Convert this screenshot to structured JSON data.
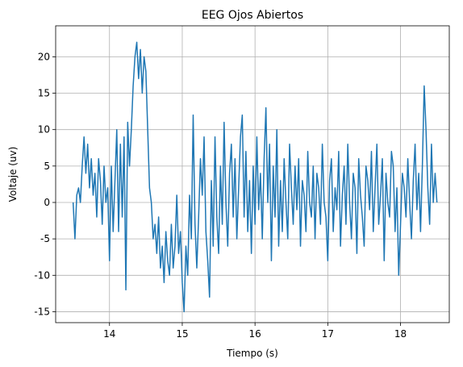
{
  "chart_data": {
    "type": "line",
    "title": "EEG Ojos Abiertos",
    "xlabel": "Tiempo (s)",
    "ylabel": "Voltaje (uv)",
    "x": [
      13.5,
      13.525,
      13.55,
      13.575,
      13.6,
      13.625,
      13.65,
      13.675,
      13.7,
      13.725,
      13.75,
      13.775,
      13.8,
      13.825,
      13.85,
      13.875,
      13.9,
      13.925,
      13.95,
      13.975,
      14.0,
      14.025,
      14.05,
      14.075,
      14.1,
      14.125,
      14.15,
      14.175,
      14.2,
      14.225,
      14.25,
      14.275,
      14.3,
      14.325,
      14.35,
      14.375,
      14.4,
      14.425,
      14.45,
      14.475,
      14.5,
      14.525,
      14.55,
      14.575,
      14.6,
      14.625,
      14.65,
      14.675,
      14.7,
      14.725,
      14.75,
      14.775,
      14.8,
      14.825,
      14.85,
      14.875,
      14.9,
      14.925,
      14.95,
      14.975,
      15.0,
      15.025,
      15.05,
      15.075,
      15.1,
      15.125,
      15.15,
      15.175,
      15.2,
      15.225,
      15.25,
      15.275,
      15.3,
      15.325,
      15.35,
      15.375,
      15.4,
      15.425,
      15.45,
      15.475,
      15.5,
      15.525,
      15.55,
      15.575,
      15.6,
      15.625,
      15.65,
      15.675,
      15.7,
      15.725,
      15.75,
      15.775,
      15.8,
      15.825,
      15.85,
      15.875,
      15.9,
      15.925,
      15.95,
      15.975,
      16.0,
      16.025,
      16.05,
      16.075,
      16.1,
      16.125,
      16.15,
      16.175,
      16.2,
      16.225,
      16.25,
      16.275,
      16.3,
      16.325,
      16.35,
      16.375,
      16.4,
      16.425,
      16.45,
      16.475,
      16.5,
      16.525,
      16.55,
      16.575,
      16.6,
      16.625,
      16.65,
      16.675,
      16.7,
      16.725,
      16.75,
      16.775,
      16.8,
      16.825,
      16.85,
      16.875,
      16.9,
      16.925,
      16.95,
      16.975,
      17.0,
      17.025,
      17.05,
      17.075,
      17.1,
      17.125,
      17.15,
      17.175,
      17.2,
      17.225,
      17.25,
      17.275,
      17.3,
      17.325,
      17.35,
      17.375,
      17.4,
      17.425,
      17.45,
      17.475,
      17.5,
      17.525,
      17.55,
      17.575,
      17.6,
      17.625,
      17.65,
      17.675,
      17.7,
      17.725,
      17.75,
      17.775,
      17.8,
      17.825,
      17.85,
      17.875,
      17.9,
      17.925,
      17.95,
      17.975,
      18.0,
      18.025,
      18.05,
      18.075,
      18.1,
      18.125,
      18.15,
      18.175,
      18.2,
      18.225,
      18.25,
      18.275,
      18.3,
      18.325,
      18.35,
      18.375,
      18.4,
      18.425,
      18.45,
      18.475,
      18.5
    ],
    "series": [
      {
        "name": "EEG",
        "color": "#1f77b4",
        "values": [
          0,
          -5,
          1,
          2,
          0,
          5,
          9,
          4,
          8,
          2,
          6,
          1,
          4,
          -2,
          6,
          3,
          -3,
          5,
          0,
          2,
          -8,
          5,
          -4,
          3,
          10,
          -4,
          8,
          -2,
          9,
          -12,
          11,
          5,
          10,
          16,
          20,
          22,
          17,
          21,
          15,
          20,
          18,
          10,
          2,
          0,
          -5,
          -3,
          -7,
          -2,
          -9,
          -6,
          -11,
          -4,
          -8,
          -10,
          -3,
          -9,
          -6,
          1,
          -7,
          -4,
          -11,
          -15,
          -6,
          -10,
          1,
          -5,
          12,
          -3,
          -9,
          -2,
          6,
          1,
          9,
          -4,
          -8,
          -13,
          3,
          -6,
          9,
          -2,
          -7,
          5,
          -3,
          11,
          0,
          -6,
          4,
          8,
          -2,
          6,
          -5,
          2,
          9,
          12,
          -2,
          7,
          -4,
          3,
          -7,
          5,
          -3,
          9,
          -1,
          4,
          -5,
          6,
          13,
          0,
          8,
          -8,
          5,
          -2,
          10,
          -6,
          3,
          -4,
          6,
          0,
          -5,
          8,
          2,
          -3,
          5,
          -1,
          6,
          -6,
          3,
          1,
          -4,
          7,
          0,
          -2,
          5,
          -5,
          4,
          2,
          -3,
          8,
          0,
          -2,
          -8,
          3,
          6,
          -4,
          2,
          -1,
          7,
          -6,
          1,
          5,
          -3,
          8,
          0,
          -5,
          4,
          2,
          -7,
          6,
          1,
          -2,
          -6,
          5,
          3,
          -1,
          7,
          -4,
          2,
          8,
          -3,
          1,
          6,
          -8,
          4,
          0,
          -2,
          7,
          5,
          -4,
          2,
          -10,
          -3,
          4,
          2,
          -2,
          6,
          0,
          -5,
          3,
          8,
          -1,
          4,
          -4,
          5,
          16,
          10,
          2,
          -3,
          8,
          0,
          4,
          0
        ]
      }
    ],
    "xlim": [
      13.26,
      18.67
    ],
    "ylim": [
      -16.5,
      24.25
    ],
    "xticks": [
      14,
      15,
      16,
      17,
      18
    ],
    "yticks": [
      -15,
      -10,
      -5,
      0,
      5,
      10,
      15,
      20
    ],
    "grid": true
  }
}
